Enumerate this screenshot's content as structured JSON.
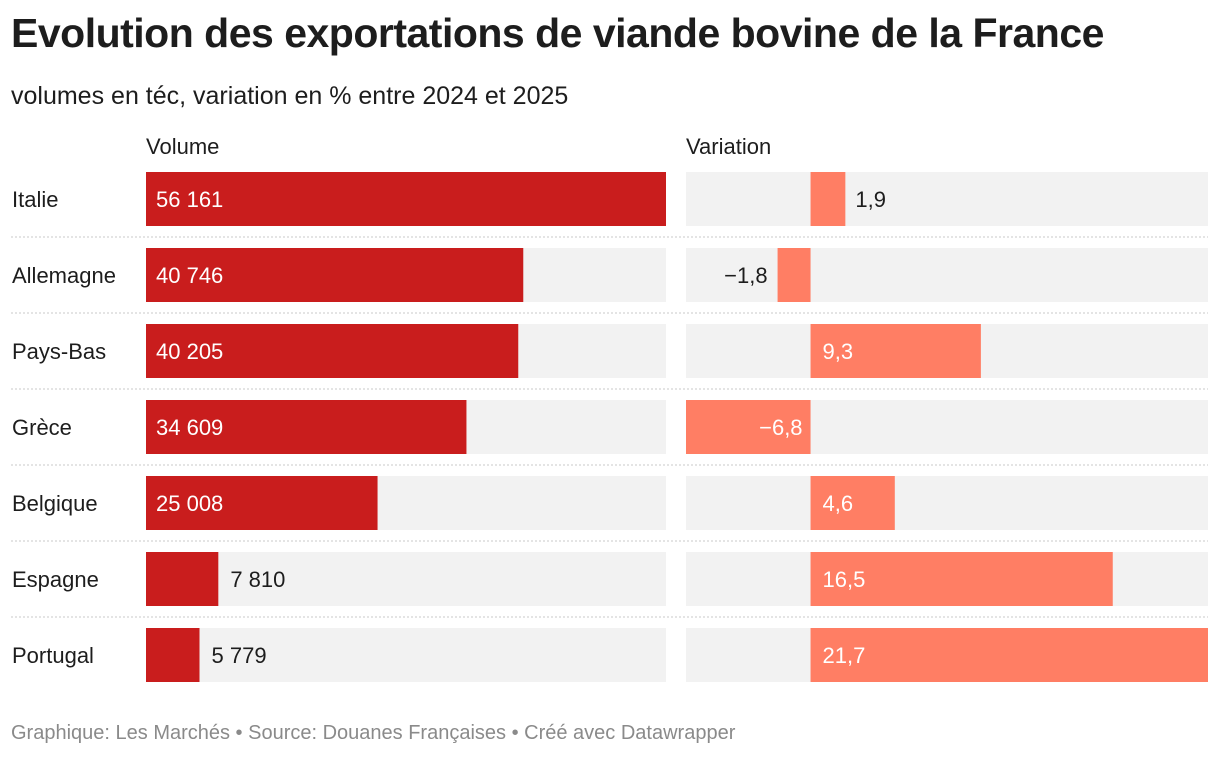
{
  "title": "Evolution des exportations de viande bovine de la France",
  "subtitle": "volumes en téc, variation en % entre 2024 et 2025",
  "footer": "Graphique: Les Marchés • Source: Douanes Françaises • Créé avec Datawrapper",
  "colors": {
    "volume_bar": "#c91d1d",
    "variation_bar": "#ff7e64",
    "track": "#f2f2f2",
    "separator": "#c8c8c8"
  },
  "chart_data": {
    "type": "bar",
    "orientation": "horizontal",
    "categories": [
      "Italie",
      "Allemagne",
      "Pays-Bas",
      "Grèce",
      "Belgique",
      "Espagne",
      "Portugal"
    ],
    "columns": [
      {
        "header": "Volume",
        "values": [
          56161,
          40746,
          40205,
          34609,
          25008,
          7810,
          5779
        ],
        "labels": [
          "56 161",
          "40 746",
          "40 205",
          "34 609",
          "25 008",
          "7 810",
          "5 779"
        ],
        "range": [
          0,
          56161
        ]
      },
      {
        "header": "Variation",
        "values": [
          1.9,
          -1.8,
          9.3,
          -6.8,
          4.6,
          16.5,
          21.7
        ],
        "labels": [
          "1,9",
          "−1,8",
          "9,3",
          "−6,8",
          "4,6",
          "16,5",
          "21,7"
        ],
        "range": [
          -6.8,
          21.7
        ]
      }
    ]
  }
}
